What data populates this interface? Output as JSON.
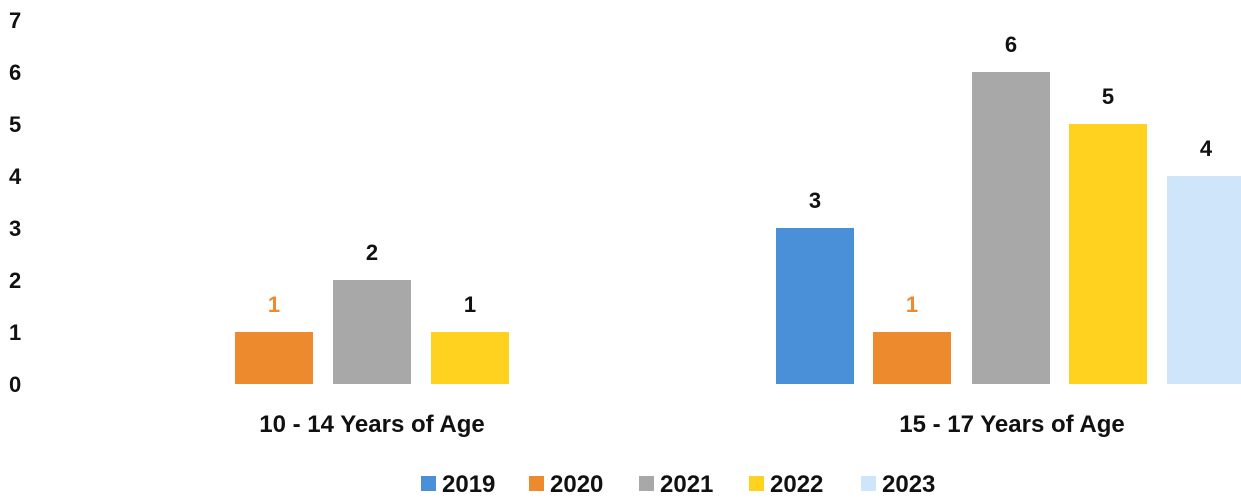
{
  "chart_data": {
    "type": "bar",
    "title": "",
    "xlabel": "",
    "ylabel": "",
    "ylim": [
      0,
      7
    ],
    "yticks": [
      0,
      1,
      2,
      3,
      4,
      5,
      6,
      7
    ],
    "grid": false,
    "legend_position": "bottom",
    "categories": [
      "10 - 14 Years of Age",
      "15 - 17 Years of Age"
    ],
    "series": [
      {
        "name": "2019",
        "color": "#4a90d9",
        "label_color": "#111111",
        "values": [
          null,
          3
        ]
      },
      {
        "name": "2020",
        "color": "#ed8a2e",
        "label_color": "#ed8a2e",
        "values": [
          1,
          1
        ]
      },
      {
        "name": "2021",
        "color": "#a8a8a8",
        "label_color": "#111111",
        "values": [
          2,
          6
        ]
      },
      {
        "name": "2022",
        "color": "#ffd21f",
        "label_color": "#111111",
        "values": [
          1,
          5
        ]
      },
      {
        "name": "2023",
        "color": "#cfe6fa",
        "label_color": "#111111",
        "values": [
          null,
          4
        ]
      }
    ]
  }
}
